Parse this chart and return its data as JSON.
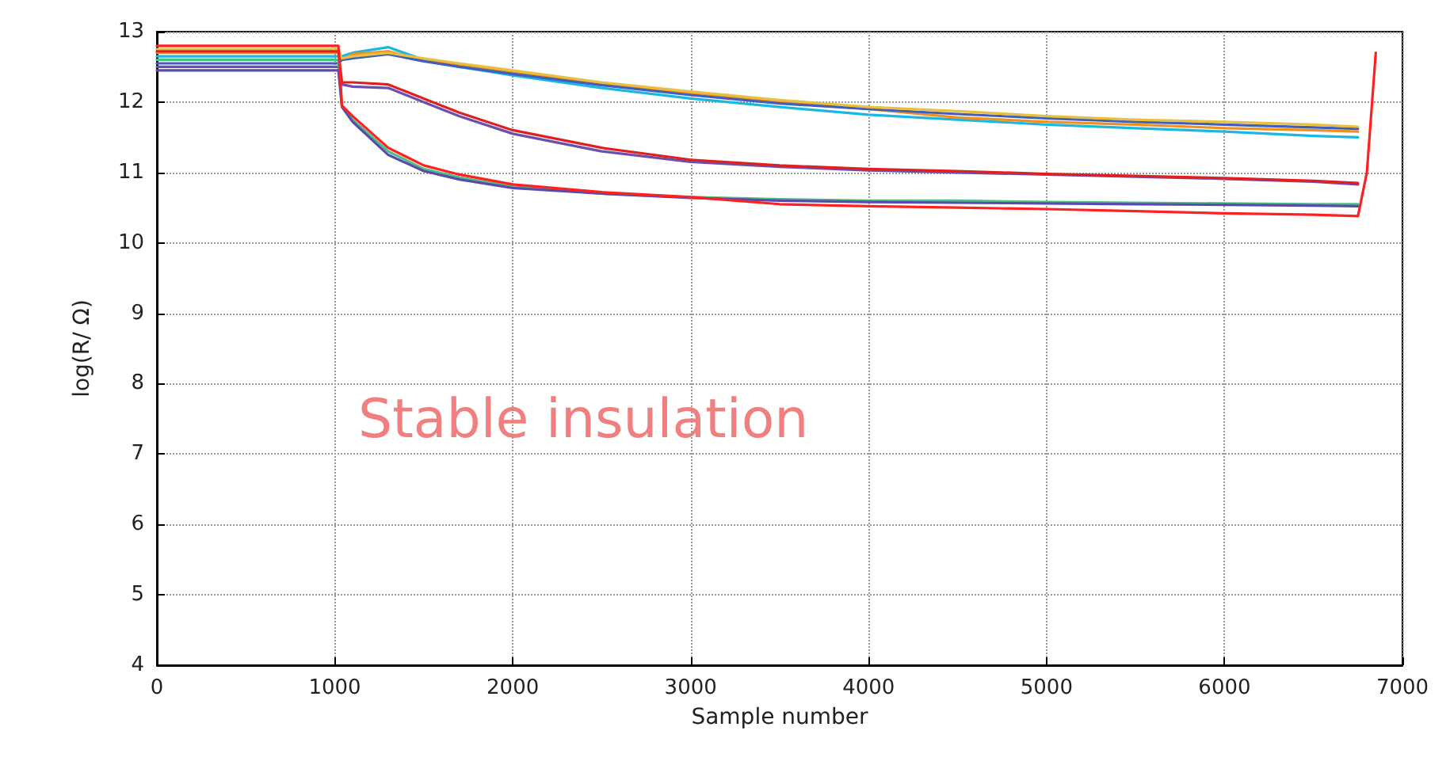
{
  "chart_data": {
    "type": "line",
    "xlabel": "Sample number",
    "ylabel": "log(R/ Ω)",
    "x": [
      0,
      1020,
      1040,
      1100,
      1300,
      1500,
      1700,
      2000,
      2500,
      3000,
      3500,
      4000,
      4500,
      5000,
      5500,
      6000,
      6500,
      6750
    ],
    "series": [
      {
        "color": "#1ab8e0",
        "values": [
          12.65,
          12.65,
          12.65,
          12.7,
          12.78,
          12.6,
          12.5,
          12.38,
          12.2,
          12.05,
          11.93,
          11.82,
          11.75,
          11.68,
          11.63,
          11.58,
          11.52,
          11.5
        ]
      },
      {
        "color": "#f09020",
        "values": [
          12.7,
          12.7,
          12.6,
          12.68,
          12.72,
          12.6,
          12.52,
          12.42,
          12.25,
          12.12,
          12.0,
          11.9,
          11.78,
          11.72,
          11.68,
          11.63,
          11.6,
          11.58
        ]
      },
      {
        "color": "#3f5fbf",
        "values": [
          12.55,
          12.55,
          12.6,
          12.62,
          12.68,
          12.58,
          12.5,
          12.4,
          12.24,
          12.1,
          11.98,
          11.9,
          11.83,
          11.77,
          11.72,
          11.68,
          11.64,
          11.62
        ]
      },
      {
        "color": "#e8c040",
        "values": [
          12.75,
          12.75,
          12.62,
          12.65,
          12.7,
          12.62,
          12.55,
          12.45,
          12.28,
          12.15,
          12.03,
          11.93,
          11.87,
          11.8,
          11.75,
          11.72,
          11.68,
          11.65
        ]
      },
      {
        "color": "#6a4fb0",
        "values": [
          12.5,
          12.5,
          12.25,
          12.22,
          12.2,
          12.0,
          11.8,
          11.55,
          11.3,
          11.15,
          11.08,
          11.03,
          11.0,
          10.97,
          10.94,
          10.91,
          10.87,
          10.83
        ]
      },
      {
        "color": "#e02020",
        "values": [
          12.72,
          12.72,
          12.28,
          12.28,
          12.25,
          12.05,
          11.85,
          11.6,
          11.35,
          11.18,
          11.1,
          11.05,
          11.02,
          10.98,
          10.95,
          10.92,
          10.88,
          10.85
        ]
      },
      {
        "color": "#4cc080",
        "values": [
          12.6,
          12.6,
          11.95,
          11.75,
          11.3,
          11.05,
          10.93,
          10.8,
          10.7,
          10.65,
          10.62,
          10.6,
          10.6,
          10.58,
          10.57,
          10.56,
          10.55,
          10.55
        ]
      },
      {
        "color": "#5a4ab0",
        "values": [
          12.45,
          12.45,
          11.93,
          11.72,
          11.25,
          11.02,
          10.9,
          10.78,
          10.7,
          10.64,
          10.6,
          10.58,
          10.57,
          10.56,
          10.55,
          10.54,
          10.53,
          10.52
        ]
      },
      {
        "color": "#ff2020",
        "x": [
          0,
          1020,
          1040,
          1100,
          1300,
          1500,
          1700,
          2000,
          2500,
          3000,
          3500,
          4000,
          4500,
          5000,
          5500,
          6000,
          6500,
          6750,
          6800,
          6850
        ],
        "values": [
          12.8,
          12.8,
          11.95,
          11.8,
          11.35,
          11.1,
          10.97,
          10.83,
          10.72,
          10.65,
          10.55,
          10.52,
          10.5,
          10.48,
          10.45,
          10.42,
          10.4,
          10.38,
          11.0,
          12.7
        ]
      }
    ],
    "xlim": [
      0,
      7000
    ],
    "xticks": [
      0,
      1000,
      2000,
      3000,
      4000,
      5000,
      6000,
      7000
    ],
    "ylim": [
      4,
      13
    ],
    "yticks": [
      4,
      5,
      6,
      7,
      8,
      9,
      10,
      11,
      12,
      13
    ],
    "grid": true,
    "marker": "none",
    "line_style": "solid",
    "annotations": [
      "Stable insulation"
    ]
  }
}
